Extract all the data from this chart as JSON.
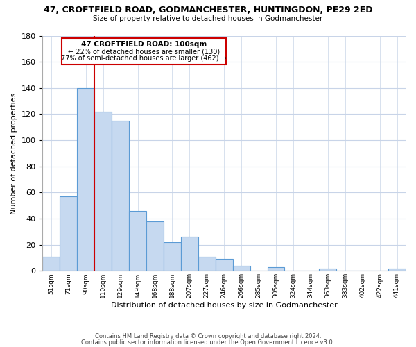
{
  "title": "47, CROFTFIELD ROAD, GODMANCHESTER, HUNTINGDON, PE29 2ED",
  "subtitle": "Size of property relative to detached houses in Godmanchester",
  "xlabel": "Distribution of detached houses by size in Godmanchester",
  "ylabel": "Number of detached properties",
  "bar_values": [
    11,
    57,
    140,
    122,
    115,
    46,
    38,
    22,
    26,
    11,
    9,
    4,
    0,
    3,
    0,
    0,
    2,
    0,
    0,
    0,
    2
  ],
  "bar_labels": [
    "51sqm",
    "71sqm",
    "90sqm",
    "110sqm",
    "129sqm",
    "149sqm",
    "168sqm",
    "188sqm",
    "207sqm",
    "227sqm",
    "246sqm",
    "266sqm",
    "285sqm",
    "305sqm",
    "324sqm",
    "344sqm",
    "363sqm",
    "383sqm",
    "402sqm",
    "422sqm",
    "441sqm"
  ],
  "bar_color": "#c6d9f0",
  "bar_edge_color": "#5b9bd5",
  "annotation_box_color": "#ffffff",
  "annotation_border_color": "#cc0000",
  "annotation_line_color": "#cc0000",
  "property_line_x": 2.5,
  "annotation_title": "47 CROFTFIELD ROAD: 100sqm",
  "annotation_line1": "← 22% of detached houses are smaller (130)",
  "annotation_line2": "77% of semi-detached houses are larger (462) →",
  "ylim": [
    0,
    180
  ],
  "yticks": [
    0,
    20,
    40,
    60,
    80,
    100,
    120,
    140,
    160,
    180
  ],
  "footer1": "Contains HM Land Registry data © Crown copyright and database right 2024.",
  "footer2": "Contains public sector information licensed under the Open Government Licence v3.0.",
  "bg_color": "#ffffff",
  "grid_color": "#c8d4e8"
}
